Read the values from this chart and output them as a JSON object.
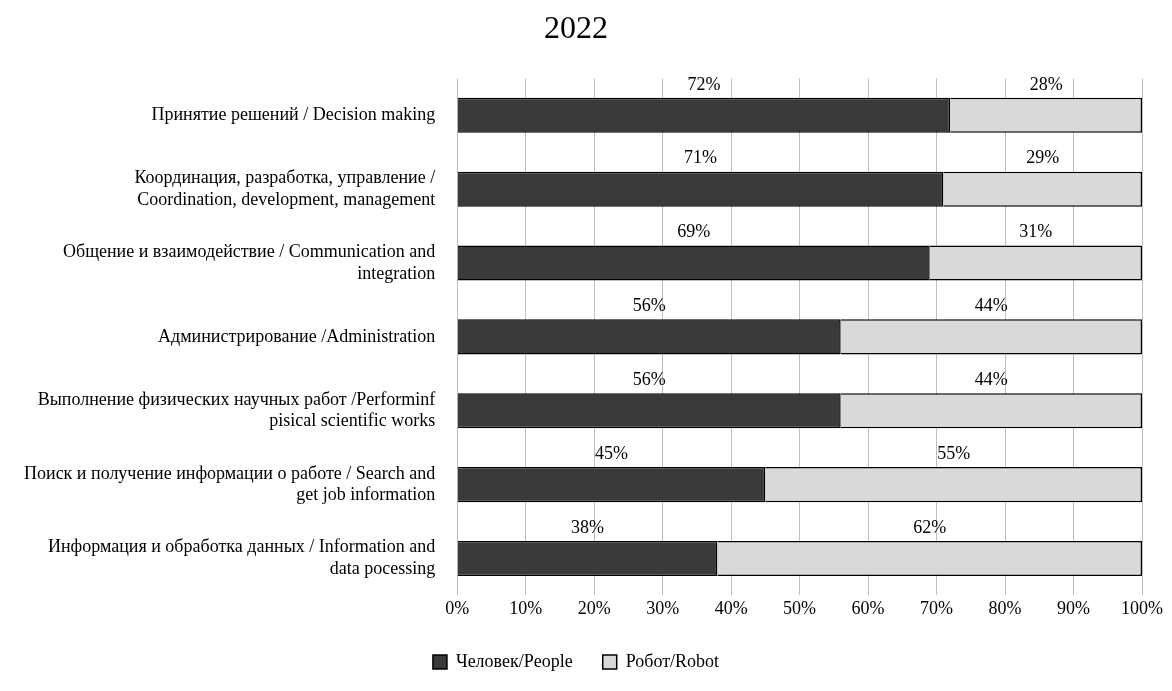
{
  "chart_data": {
    "type": "bar",
    "title": "2022",
    "orientation": "horizontal",
    "stacked": true,
    "categories": [
      "Принятие решений / Decision making",
      "Координация, разработка, управление / Coordination, development, management",
      "Общение и взаимодействие / Communication and integration",
      "Администрирование /Administration",
      "Выполнение физических научных работ /Performinf pisical scientific works",
      "Поиск и получение информации о работе / Search and get job information",
      "Информация и обработка данных / Information and data pocessing"
    ],
    "series": [
      {
        "name": "Человек/People",
        "color": "#3a3a3a",
        "values": [
          72,
          71,
          69,
          56,
          56,
          45,
          38
        ],
        "value_labels": [
          "72%",
          "71%",
          "69%",
          "56%",
          "56%",
          "45%",
          "38%"
        ]
      },
      {
        "name": "Робот/Robot",
        "color": "#d9d9d9",
        "values": [
          28,
          29,
          31,
          44,
          44,
          55,
          62
        ],
        "value_labels": [
          "28%",
          "29%",
          "31%",
          "44%",
          "44%",
          "55%",
          "62%"
        ]
      }
    ],
    "xlim": [
      0,
      100
    ],
    "xticks": [
      {
        "value": 0,
        "label": "0%"
      },
      {
        "value": 10,
        "label": "10%"
      },
      {
        "value": 20,
        "label": "20%"
      },
      {
        "value": 30,
        "label": "30%"
      },
      {
        "value": 40,
        "label": "40%"
      },
      {
        "value": 50,
        "label": "50%"
      },
      {
        "value": 60,
        "label": "60%"
      },
      {
        "value": 70,
        "label": "70%"
      },
      {
        "value": 80,
        "label": "80%"
      },
      {
        "value": 90,
        "label": "90%"
      },
      {
        "value": 100,
        "label": "100%"
      }
    ],
    "grid": "x",
    "legend": "bottom"
  }
}
